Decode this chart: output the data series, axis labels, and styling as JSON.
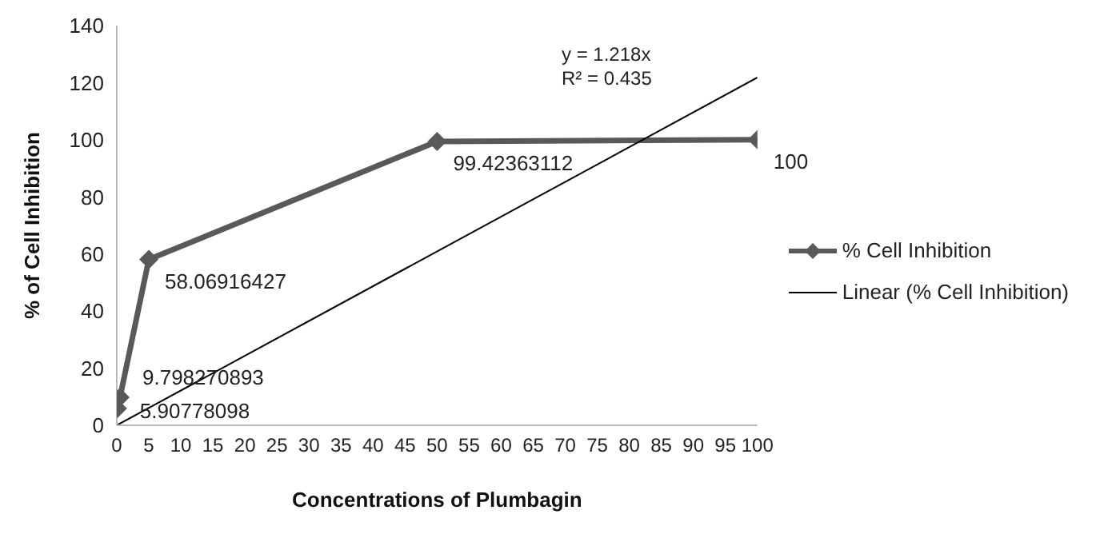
{
  "chart_data": {
    "type": "line",
    "xlabel": "Concentrations of Plumbagin",
    "ylabel": "% of Cell Inhibition",
    "xlim": [
      0,
      100
    ],
    "xticks": [
      0,
      5,
      10,
      15,
      20,
      25,
      30,
      35,
      40,
      45,
      50,
      55,
      60,
      65,
      70,
      75,
      80,
      85,
      90,
      95,
      100
    ],
    "ylim": [
      0,
      140
    ],
    "yticks": [
      0,
      20,
      40,
      60,
      80,
      100,
      120,
      140
    ],
    "grid": false,
    "legend": "right",
    "line_style": "solid",
    "series": [
      {
        "name": "% Cell Inhibition",
        "color": "#595959",
        "x": [
          0.1,
          0.5,
          5,
          50,
          100
        ],
        "values": [
          5.90778098,
          9.798270893,
          58.06916427,
          99.42363112,
          100
        ],
        "value_labels": [
          "5.90778098",
          "9.798270893",
          "58.06916427",
          "99.42363112",
          "100"
        ],
        "marker": "diamond"
      },
      {
        "name": "Linear (% Cell Inhibition)",
        "color": "#000000",
        "x": [
          0,
          100
        ],
        "values": [
          0,
          121.8
        ],
        "marker": "none"
      }
    ],
    "annotations": [
      "y = 1.218x",
      "R² = 0.435"
    ]
  }
}
